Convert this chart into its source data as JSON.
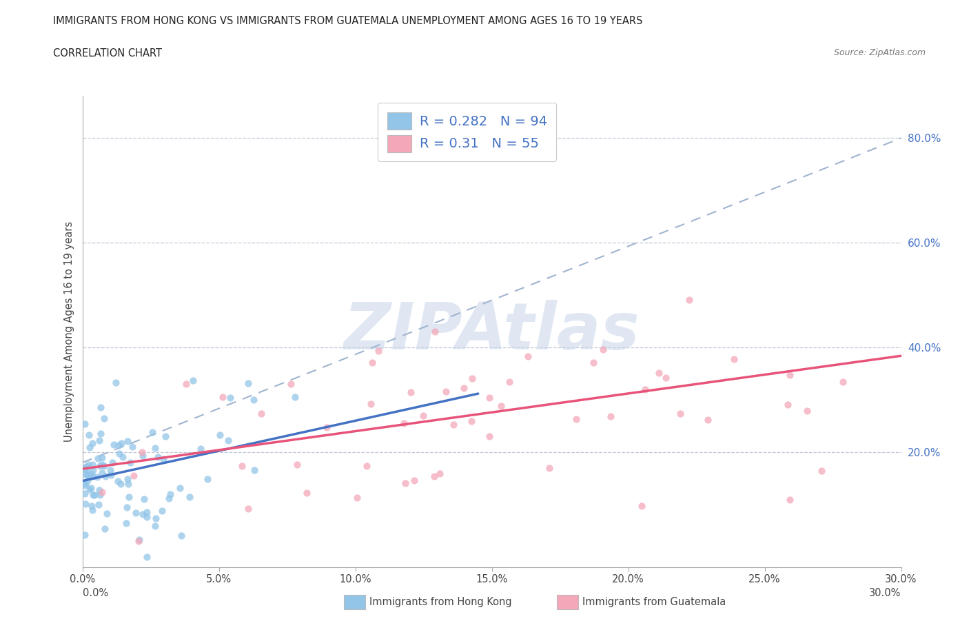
{
  "title_line1": "IMMIGRANTS FROM HONG KONG VS IMMIGRANTS FROM GUATEMALA UNEMPLOYMENT AMONG AGES 16 TO 19 YEARS",
  "title_line2": "CORRELATION CHART",
  "source_text": "Source: ZipAtlas.com",
  "ylabel": "Unemployment Among Ages 16 to 19 years",
  "xlim": [
    0.0,
    0.3
  ],
  "ylim": [
    -0.02,
    0.88
  ],
  "xtick_labels": [
    "0.0%",
    "5.0%",
    "10.0%",
    "15.0%",
    "20.0%",
    "25.0%",
    "30.0%"
  ],
  "xtick_values": [
    0.0,
    0.05,
    0.1,
    0.15,
    0.2,
    0.25,
    0.3
  ],
  "ytick_labels": [
    "20.0%",
    "40.0%",
    "60.0%",
    "80.0%"
  ],
  "ytick_values": [
    0.2,
    0.4,
    0.6,
    0.8
  ],
  "hk_color": "#92C5E8",
  "guat_color": "#F4A7B9",
  "hk_R": 0.282,
  "hk_N": 94,
  "guat_R": 0.31,
  "guat_N": 55,
  "legend_color": "#4472C4",
  "hk_line_color": "#4472C4",
  "guat_line_color": "#E8537A",
  "dashed_line_color": "#A0B4D0",
  "watermark_color": "#C8D4E8",
  "background_color": "#FFFFFF",
  "grid_color": "#C0C8D8",
  "bottom_label_0": "0.0%",
  "bottom_label_30": "30.0%",
  "bottom_legend_hk": "Immigrants from Hong Kong",
  "bottom_legend_guat": "Immigrants from Guatemala"
}
